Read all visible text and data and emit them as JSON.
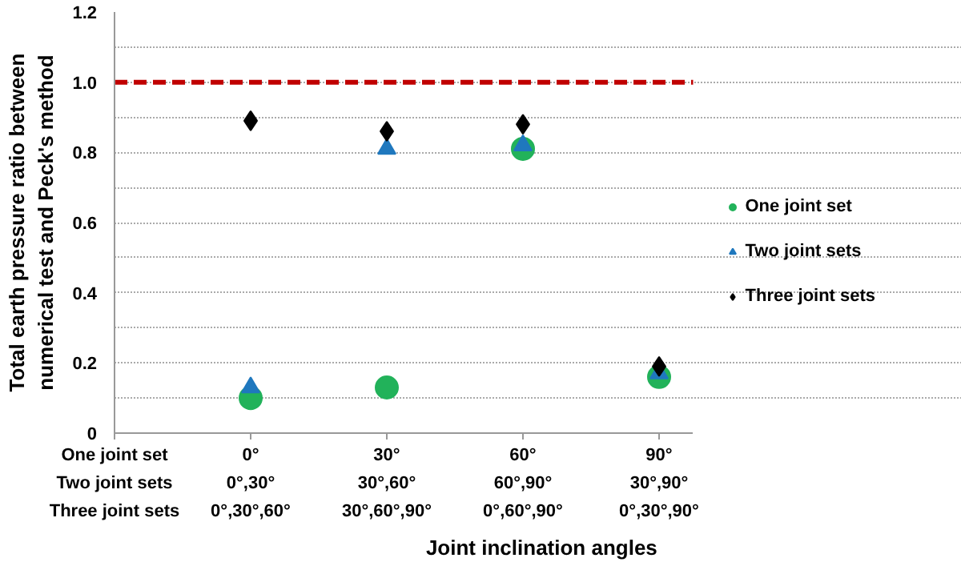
{
  "chart_data": {
    "type": "scatter",
    "xlabel": "Joint inclination  angles",
    "ylabel": "Total earth pressure ratio between\nnumerical test and Peck's method",
    "categories": [
      "0°\n0°,30°\n0°,30°,60°",
      "30°\n30°,60°\n30°,60°,90°",
      "60°\n60°,90°\n0°,60°,90°",
      "90°\n30°,90°\n0°,30°,90°"
    ],
    "annotations": [
      "One joint set",
      "Two joint sets",
      "Three joint sets"
    ],
    "series": [
      {
        "name": "One joint set",
        "color": "#22b25a",
        "marker": "circle",
        "values": [
          0.1,
          0.13,
          0.81,
          0.16
        ]
      },
      {
        "name": "Two joint sets",
        "color": "#1f78be",
        "marker": "triangle",
        "values": [
          0.13,
          0.81,
          0.82,
          0.17
        ]
      },
      {
        "name": "Three joint sets",
        "color": "#000000",
        "marker": "diamond",
        "values": [
          0.89,
          0.86,
          0.88,
          0.19
        ]
      }
    ],
    "ylim": [
      0,
      1.2
    ],
    "yticks": [
      0,
      {
        "value": 0.1,
        "label": null
      },
      0.2,
      {
        "value": 0.3,
        "label": null
      },
      0.4,
      {
        "value": 0.5,
        "label": null
      },
      0.6,
      {
        "value": 0.7,
        "label": null
      },
      0.8,
      {
        "value": 0.9,
        "label": null
      },
      {
        "value": 1,
        "label": "1.0"
      },
      {
        "value": 1.1,
        "label": null
      },
      1.2
    ],
    "ref_lines": [
      {
        "axis": "y",
        "value": 1,
        "color": "#c00000",
        "line_style": "dashed"
      }
    ],
    "grid": "y",
    "legend": "right"
  }
}
